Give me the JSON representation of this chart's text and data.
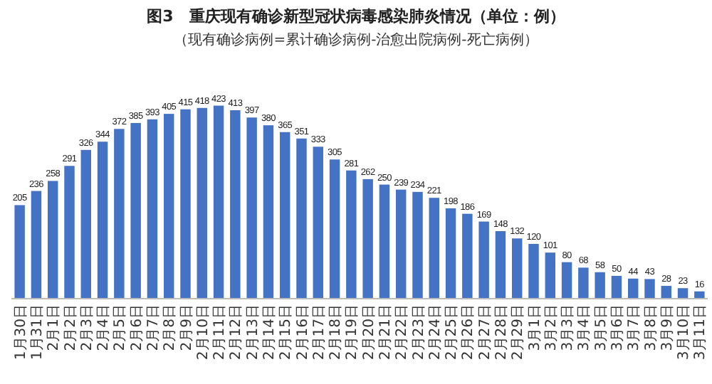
{
  "chart_data": {
    "type": "bar",
    "title": "图3　重庆现有确诊新型冠状病毒感染肺炎情况（单位：例）",
    "subtitle": "（现有确诊病例=累计确诊病例-治愈出院病例-死亡病例）",
    "categories": [
      "1月30日",
      "1月31日",
      "2月1日",
      "2月2日",
      "2月3日",
      "2月4日",
      "2月5日",
      "2月6日",
      "2月7日",
      "2月8日",
      "2月9日",
      "2月10日",
      "2月11日",
      "2月12日",
      "2月13日",
      "2月14日",
      "2月15日",
      "2月16日",
      "2月17日",
      "2月18日",
      "2月19日",
      "2月20日",
      "2月21日",
      "2月22日",
      "2月23日",
      "2月24日",
      "2月25日",
      "2月26日",
      "2月27日",
      "2月28日",
      "2月29日",
      "3月1日",
      "3月2日",
      "3月3日",
      "3月4日",
      "3月5日",
      "3月6日",
      "3月7日",
      "3月8日",
      "3月9日",
      "3月10日",
      "3月11日"
    ],
    "values": [
      205,
      236,
      258,
      291,
      326,
      344,
      372,
      385,
      393,
      405,
      415,
      418,
      423,
      413,
      397,
      380,
      365,
      351,
      333,
      305,
      281,
      262,
      250,
      239,
      234,
      221,
      198,
      186,
      169,
      148,
      132,
      120,
      101,
      80,
      68,
      58,
      50,
      44,
      43,
      28,
      23,
      16
    ],
    "color": "#4472c4",
    "data_labels": true
  }
}
